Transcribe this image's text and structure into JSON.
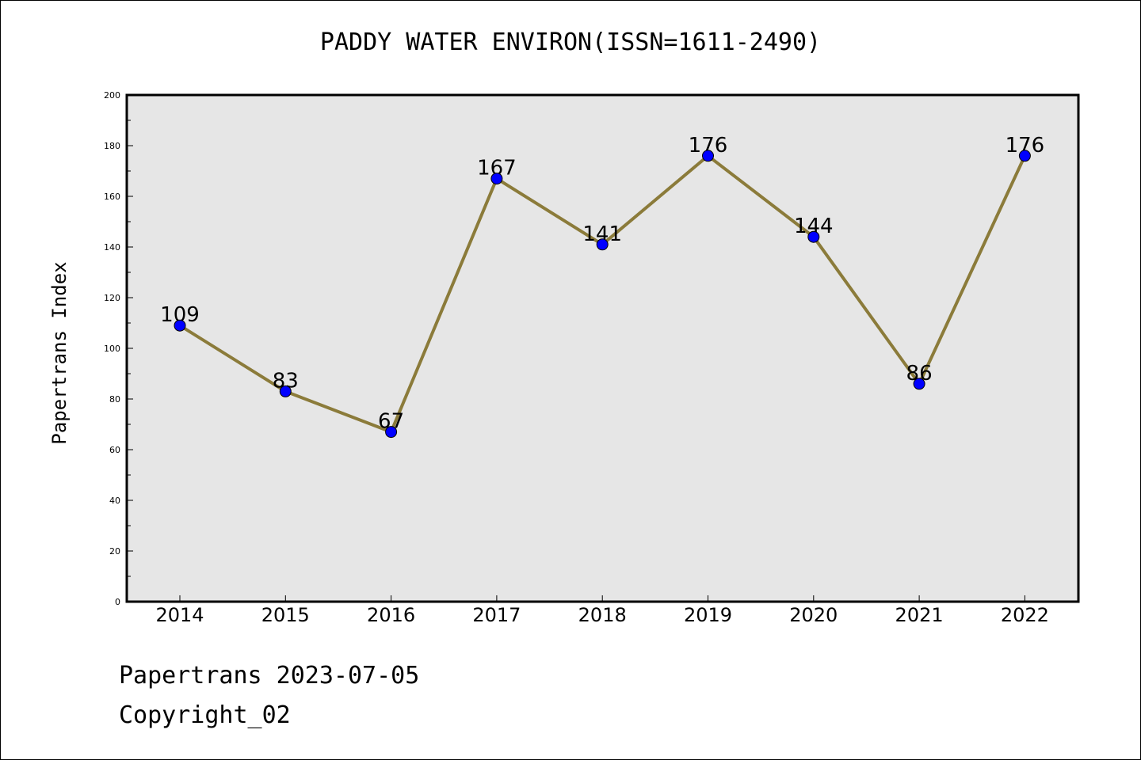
{
  "chart_data": {
    "type": "line",
    "title": "PADDY WATER ENVIRON(ISSN=1611-2490)",
    "xlabel": "",
    "ylabel": "Papertrans Index",
    "categories": [
      "2014",
      "2015",
      "2016",
      "2017",
      "2018",
      "2019",
      "2020",
      "2021",
      "2022"
    ],
    "values": [
      109,
      83,
      67,
      167,
      141,
      176,
      144,
      86,
      176
    ],
    "data_labels": [
      "109",
      "83",
      "67",
      "167",
      "141",
      "176",
      "144",
      "86",
      "176"
    ],
    "ylim": [
      0,
      200
    ],
    "yticks": [
      "0",
      "20",
      "40",
      "60",
      "80",
      "100",
      "120",
      "140",
      "160",
      "180",
      "200"
    ],
    "grid": false,
    "legend": "none",
    "colors": {
      "line": "#8B7B3A",
      "marker": "#0000FF",
      "plot_background": "#E6E6E6"
    }
  },
  "footer": {
    "line1": "Papertrans 2023-07-05",
    "line2": "Copyright_02"
  }
}
